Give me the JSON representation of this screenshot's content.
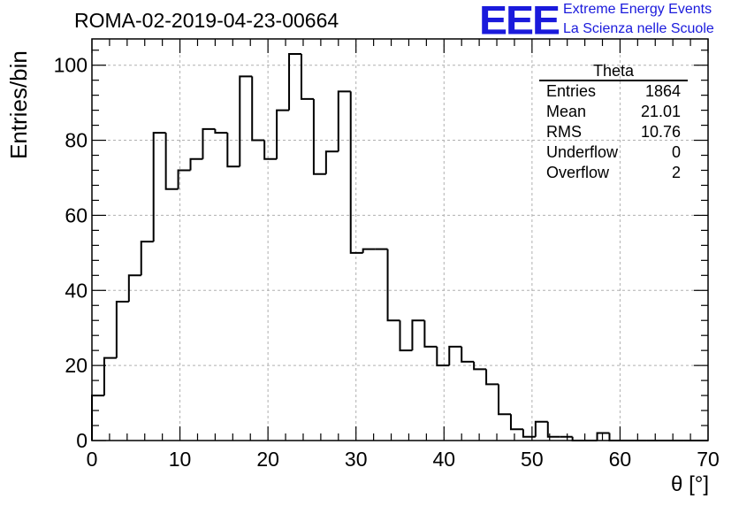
{
  "header": {
    "title": "ROMA-02-2019-04-23-00664",
    "logo": "EEE",
    "brand_line1": "Extreme Energy Events",
    "brand_line2": "La Scienza nelle Scuole"
  },
  "stats": {
    "title": "Theta",
    "rows": [
      {
        "label": "Entries",
        "value": "1864"
      },
      {
        "label": "Mean",
        "value": "21.01"
      },
      {
        "label": "RMS",
        "value": "10.76"
      },
      {
        "label": "Underflow",
        "value": "0"
      },
      {
        "label": "Overflow",
        "value": "2"
      }
    ]
  },
  "colors": {
    "logo": "#1a1adc",
    "line": "#000000",
    "grid": "#b0b0b0"
  },
  "chart_data": {
    "type": "histogram",
    "title": "ROMA-02-2019-04-23-00664",
    "xlabel": "θ [°]",
    "ylabel": "Entries/bin",
    "xlim": [
      0,
      70
    ],
    "ylim": [
      0,
      107
    ],
    "bin_width": 1.4,
    "bin_start": 0,
    "xticks": [
      0,
      10,
      20,
      30,
      40,
      50,
      60,
      70
    ],
    "yticks": [
      0,
      20,
      40,
      60,
      80,
      100
    ],
    "grid": true,
    "values": [
      12,
      22,
      37,
      44,
      53,
      82,
      67,
      72,
      75,
      83,
      82,
      73,
      97,
      80,
      75,
      88,
      103,
      91,
      71,
      77,
      93,
      50,
      51,
      51,
      32,
      24,
      32,
      25,
      20,
      25,
      21,
      19,
      15,
      7,
      3,
      1,
      5,
      1,
      1,
      0,
      0,
      2,
      0,
      0,
      0,
      0,
      0,
      0,
      0,
      0
    ]
  }
}
